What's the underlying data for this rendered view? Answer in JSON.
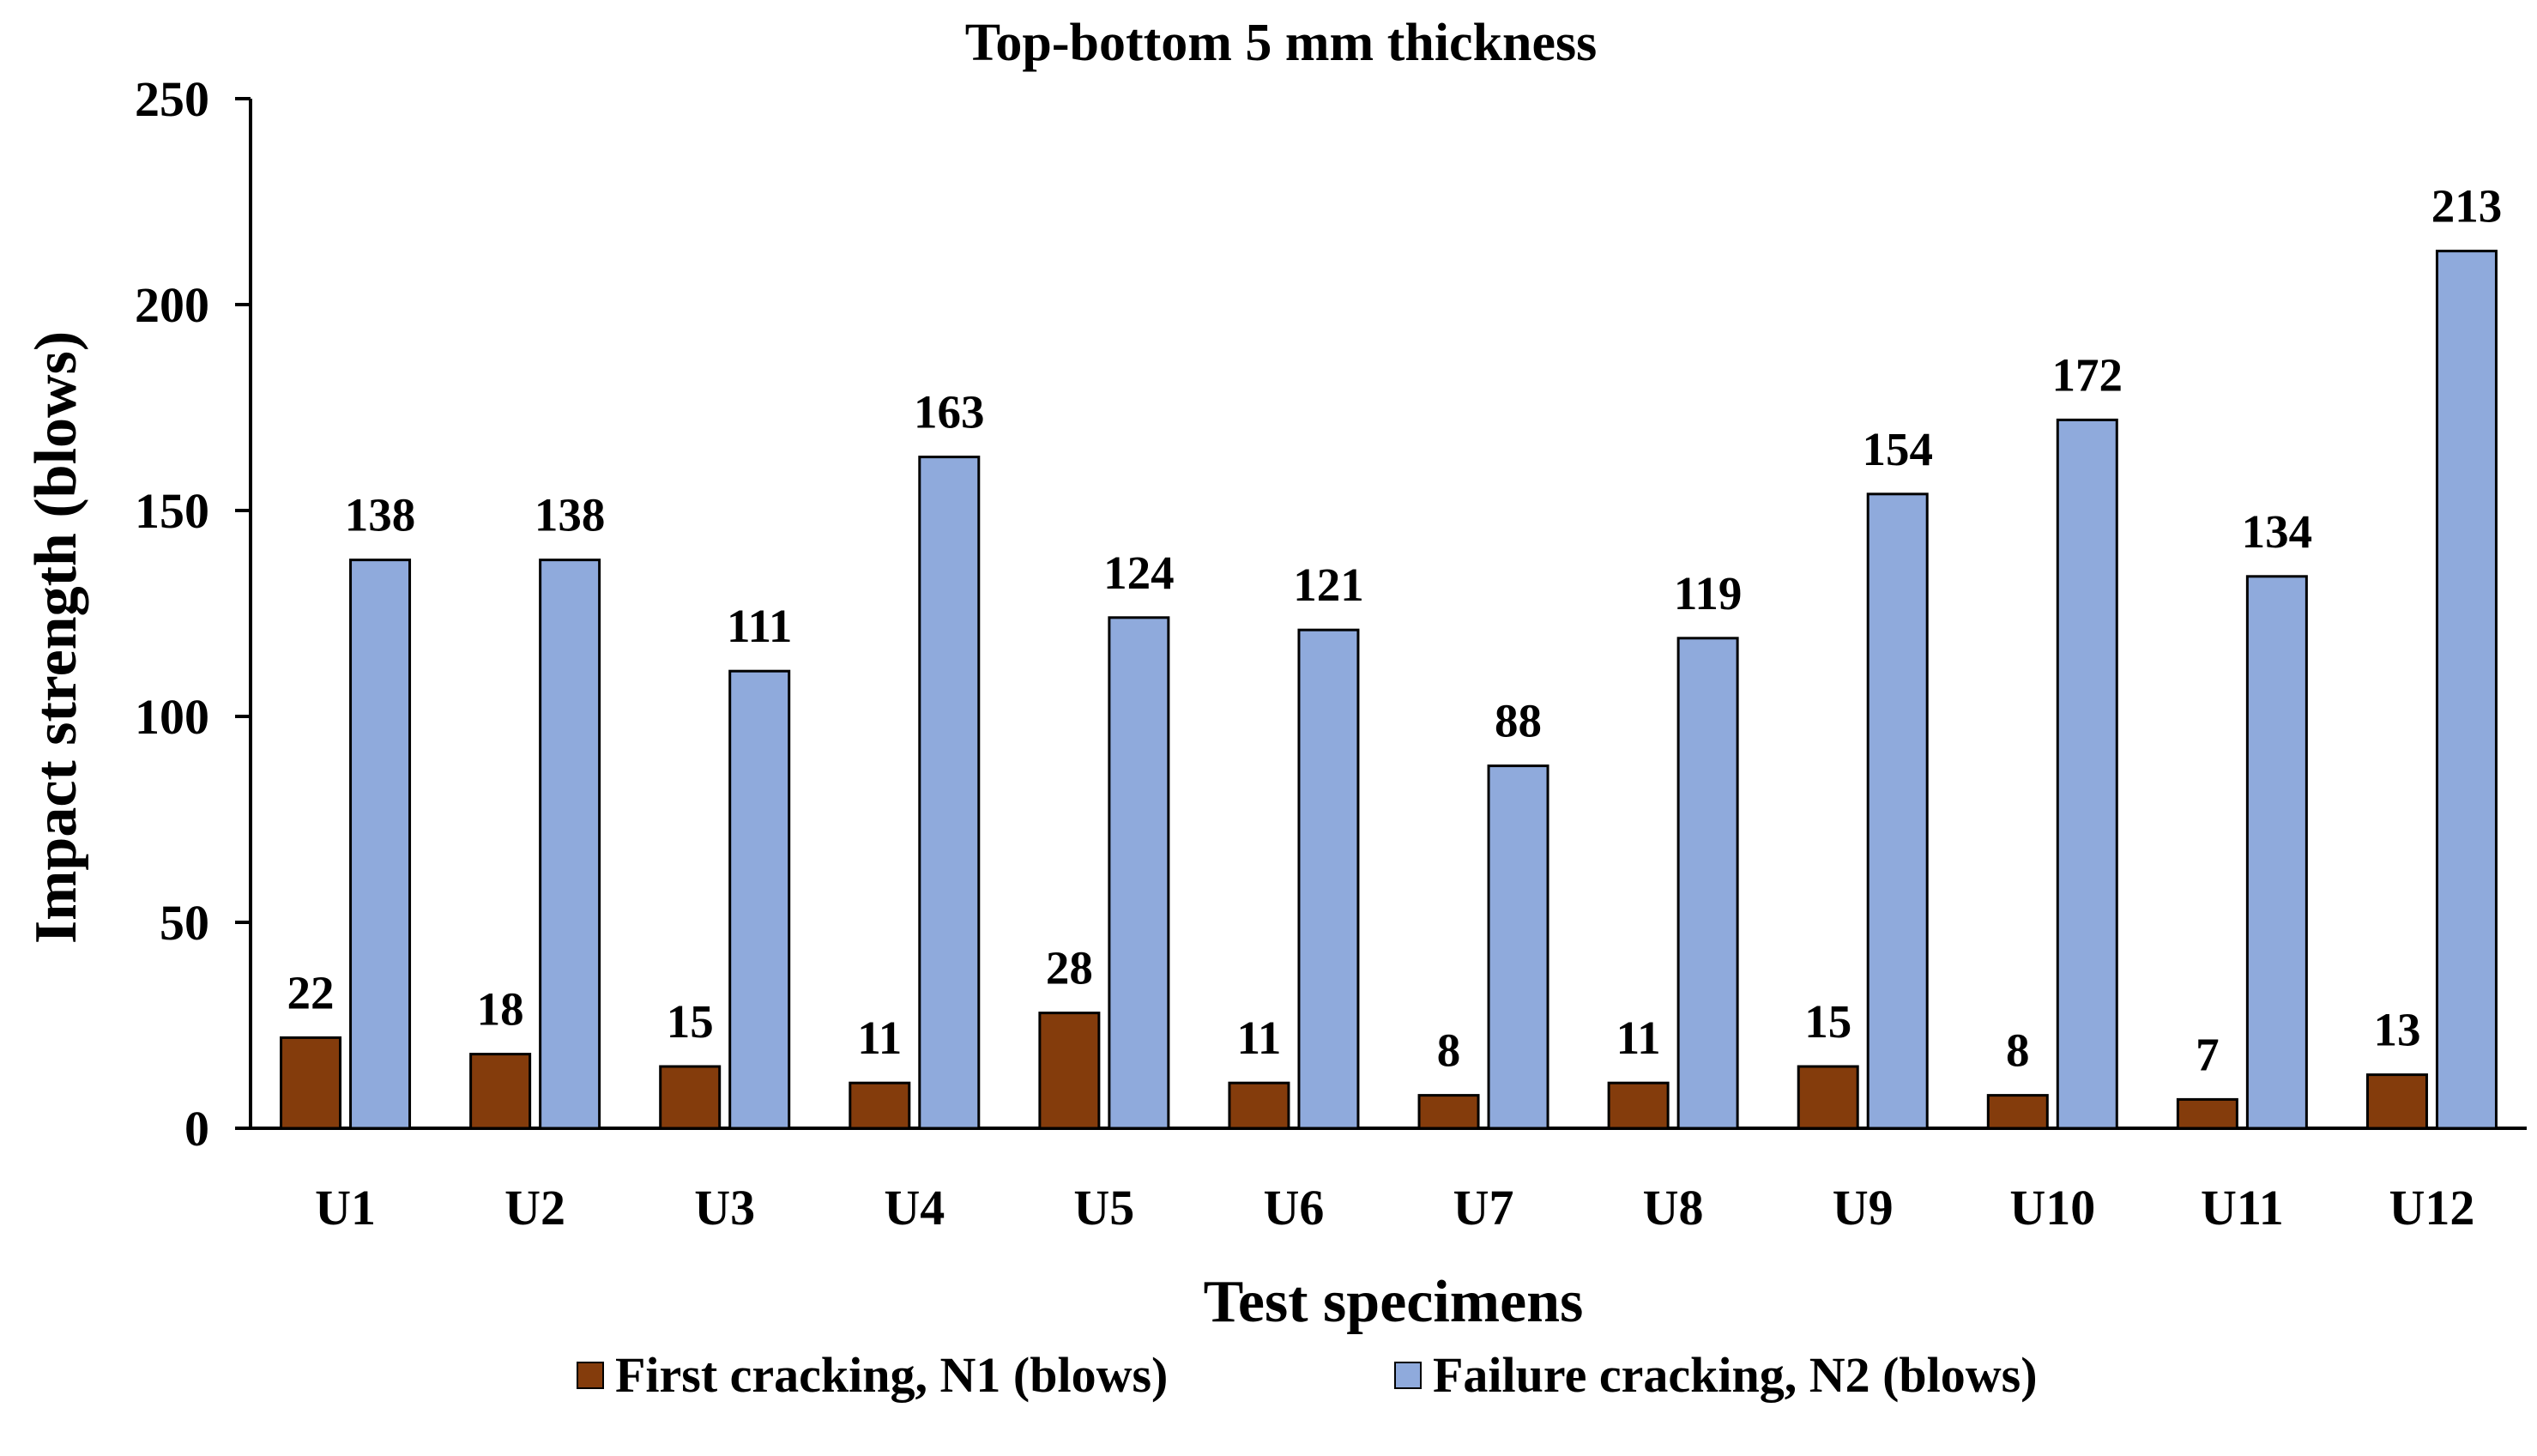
{
  "chart_data": {
    "type": "bar",
    "title": "Top-bottom 5 mm thickness",
    "xlabel": "Test specimens",
    "ylabel": "Impact strength (blows)",
    "ylim": [
      0,
      250
    ],
    "yticks": [
      "0",
      "50",
      "100",
      "150",
      "200",
      "250"
    ],
    "categories": [
      "U1",
      "U2",
      "U3",
      "U4",
      "U5",
      "U6",
      "U7",
      "U8",
      "U9",
      "U10",
      "U11",
      "U12"
    ],
    "series": [
      {
        "name": "First cracking, N1 (blows)",
        "color": "#843C0C",
        "values": [
          22,
          18,
          15,
          11,
          28,
          11,
          8,
          11,
          15,
          8,
          7,
          13
        ]
      },
      {
        "name": "Failure cracking, N2 (blows)",
        "color": "#8FAADC",
        "values": [
          138,
          138,
          111,
          163,
          124,
          121,
          88,
          119,
          154,
          172,
          134,
          213
        ]
      }
    ],
    "grid": false,
    "legend_position": "bottom"
  }
}
